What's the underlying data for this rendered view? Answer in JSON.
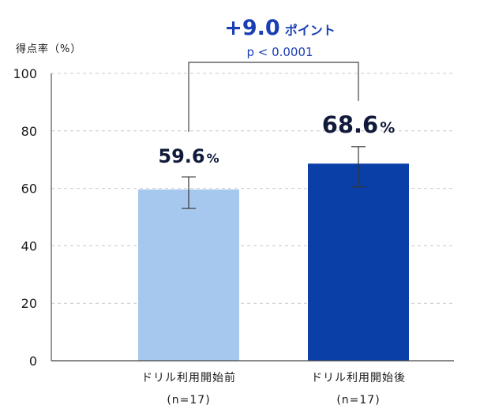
{
  "chart_data": {
    "type": "bar",
    "ylabel": "得点率（%）",
    "ylim": [
      0,
      100
    ],
    "yticks": [
      0,
      20,
      40,
      60,
      80,
      100
    ],
    "grid": true,
    "categories": [
      {
        "label": "ドリル利用開始前",
        "n": "(n=17)"
      },
      {
        "label": "ドリル利用開始後",
        "n": "(n=17)"
      }
    ],
    "values": [
      59.6,
      68.6
    ],
    "value_labels": [
      "59.6",
      "68.6"
    ],
    "value_unit": "%",
    "error_bars": [
      [
        53,
        64
      ],
      [
        60.5,
        74.5
      ]
    ],
    "colors": [
      "#a6c8ef",
      "#0a3fa8"
    ],
    "annotation": {
      "difference_value": "+9.0",
      "difference_unit": "ポイント",
      "p_value": "p < 0.0001",
      "color": "#1a3fb4"
    }
  }
}
